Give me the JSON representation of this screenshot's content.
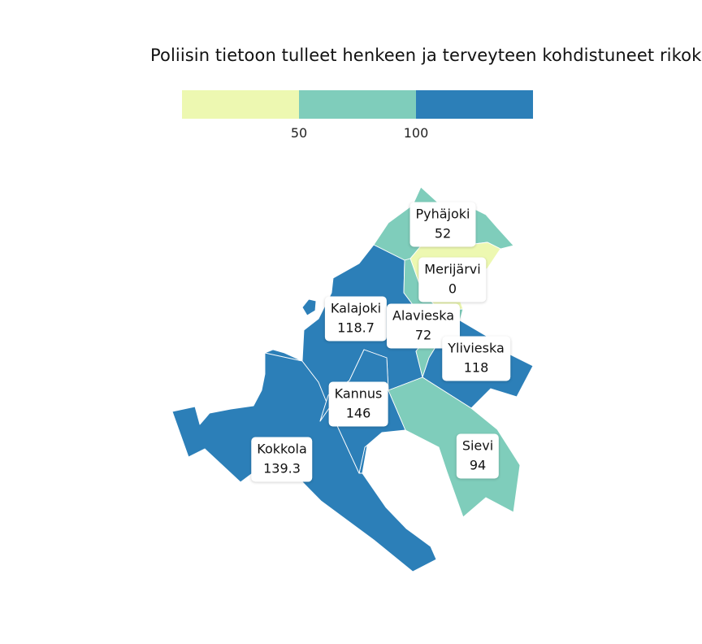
{
  "title": "Poliisin tietoon tulleet henkeen ja terveyteen kohdistuneet rikokset",
  "legend": {
    "bins": [
      {
        "color": "#edf8b1"
      },
      {
        "color": "#7fcdbb"
      },
      {
        "color": "#2c7fb8"
      }
    ],
    "ticks": [
      "50",
      "100"
    ]
  },
  "regions": [
    {
      "id": "pyhajoki",
      "name": "Pyhäjoki",
      "value": "52",
      "color": "#7fcdbb"
    },
    {
      "id": "merijarvi",
      "name": "Merijärvi",
      "value": "0",
      "color": "#edf8b1"
    },
    {
      "id": "kalajoki",
      "name": "Kalajoki",
      "value": "118.7",
      "color": "#2c7fb8"
    },
    {
      "id": "alavieska",
      "name": "Alavieska",
      "value": "72",
      "color": "#7fcdbb"
    },
    {
      "id": "ylivieska",
      "name": "Ylivieska",
      "value": "118",
      "color": "#2c7fb8"
    },
    {
      "id": "kannus",
      "name": "Kannus",
      "value": "146",
      "color": "#2c7fb8"
    },
    {
      "id": "sievi",
      "name": "Sievi",
      "value": "94",
      "color": "#7fcdbb"
    },
    {
      "id": "kokkola",
      "name": "Kokkola",
      "value": "139.3",
      "color": "#2c7fb8"
    }
  ]
}
